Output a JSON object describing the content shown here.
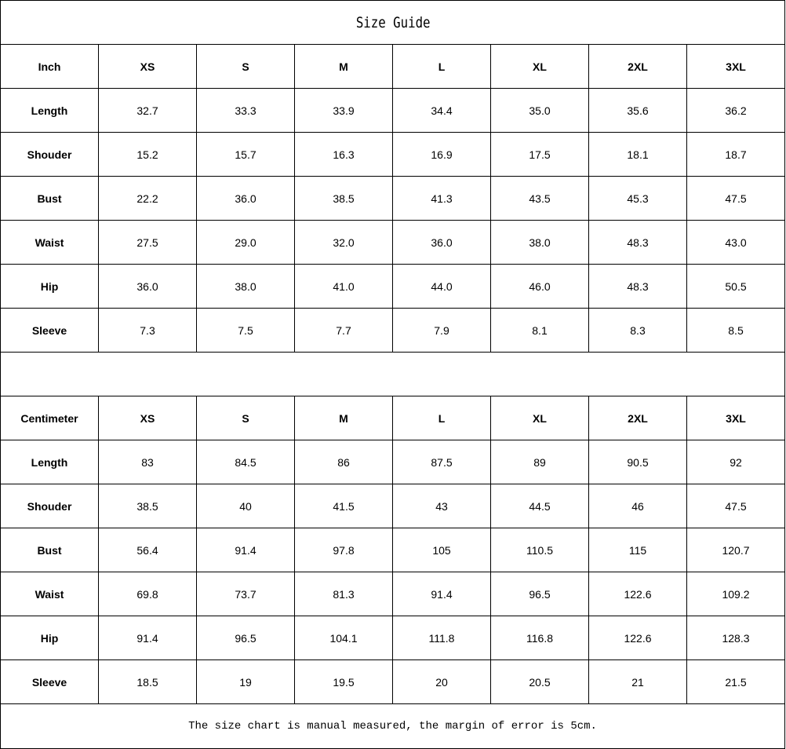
{
  "title": "Size Guide",
  "sizes": [
    "XS",
    "S",
    "M",
    "L",
    "XL",
    "2XL",
    "3XL"
  ],
  "tables": [
    {
      "unit": "Inch",
      "rows": [
        {
          "label": "Length",
          "values": [
            "32.7",
            "33.3",
            "33.9",
            "34.4",
            "35.0",
            "35.6",
            "36.2"
          ]
        },
        {
          "label": "Shouder",
          "values": [
            "15.2",
            "15.7",
            "16.3",
            "16.9",
            "17.5",
            "18.1",
            "18.7"
          ]
        },
        {
          "label": "Bust",
          "values": [
            "22.2",
            "36.0",
            "38.5",
            "41.3",
            "43.5",
            "45.3",
            "47.5"
          ]
        },
        {
          "label": "Waist",
          "values": [
            "27.5",
            "29.0",
            "32.0",
            "36.0",
            "38.0",
            "48.3",
            "43.0"
          ]
        },
        {
          "label": "Hip",
          "values": [
            "36.0",
            "38.0",
            "41.0",
            "44.0",
            "46.0",
            "48.3",
            "50.5"
          ]
        },
        {
          "label": "Sleeve",
          "values": [
            "7.3",
            "7.5",
            "7.7",
            "7.9",
            "8.1",
            "8.3",
            "8.5"
          ]
        }
      ]
    },
    {
      "unit": "Centimeter",
      "rows": [
        {
          "label": "Length",
          "values": [
            "83",
            "84.5",
            "86",
            "87.5",
            "89",
            "90.5",
            "92"
          ]
        },
        {
          "label": "Shouder",
          "values": [
            "38.5",
            "40",
            "41.5",
            "43",
            "44.5",
            "46",
            "47.5"
          ]
        },
        {
          "label": "Bust",
          "values": [
            "56.4",
            "91.4",
            "97.8",
            "105",
            "110.5",
            "115",
            "120.7"
          ]
        },
        {
          "label": "Waist",
          "values": [
            "69.8",
            "73.7",
            "81.3",
            "91.4",
            "96.5",
            "122.6",
            "109.2"
          ]
        },
        {
          "label": "Hip",
          "values": [
            "91.4",
            "96.5",
            "104.1",
            "111.8",
            "116.8",
            "122.6",
            "128.3"
          ]
        },
        {
          "label": "Sleeve",
          "values": [
            "18.5",
            "19",
            "19.5",
            "20",
            "20.5",
            "21",
            "21.5"
          ]
        }
      ]
    }
  ],
  "note": "The size chart is manual measured, the margin of error is 5cm."
}
